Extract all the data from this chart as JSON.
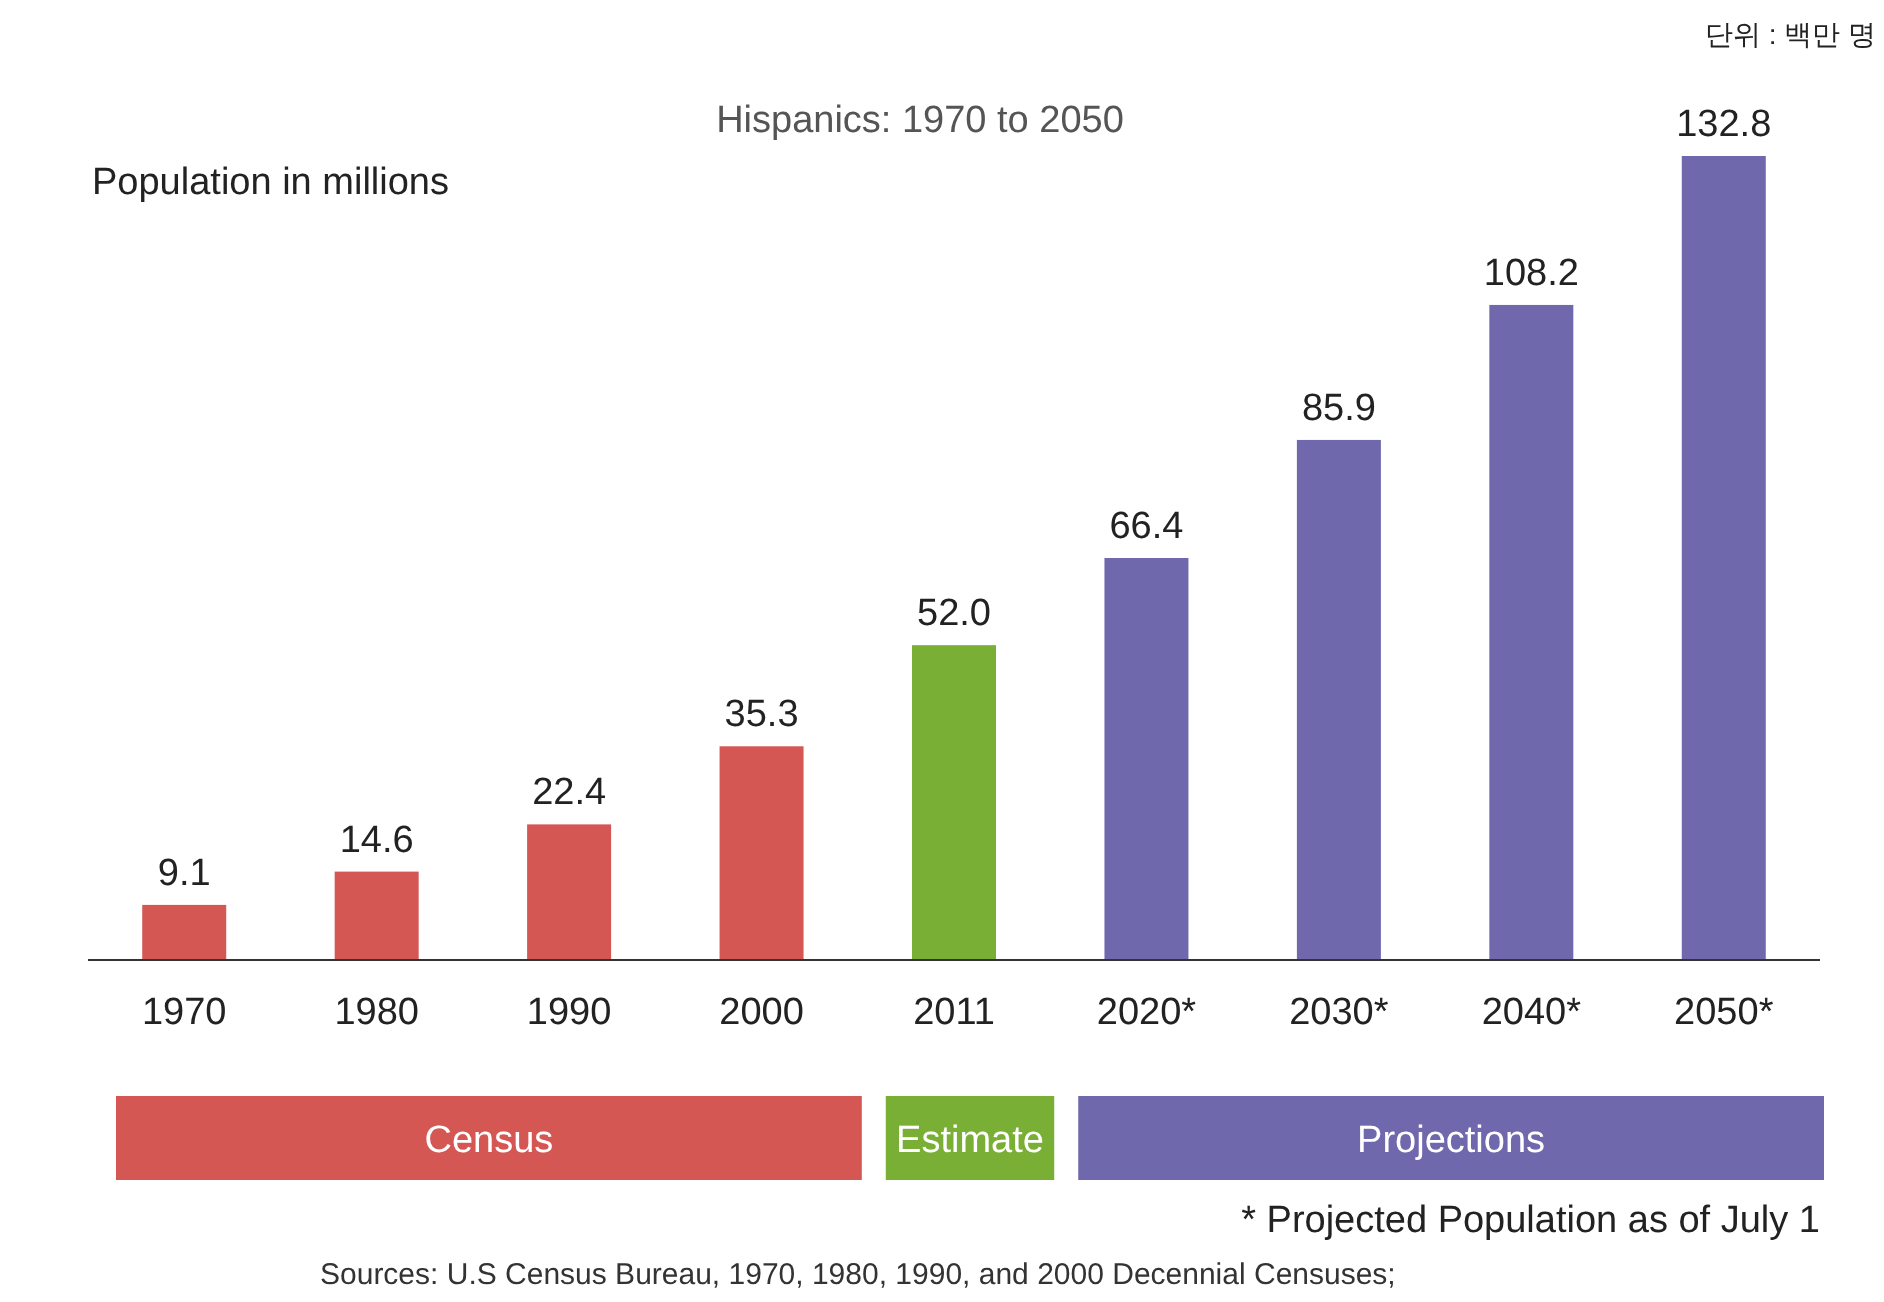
{
  "chart_data": {
    "type": "bar",
    "title": "Hispanics: 1970 to 2050",
    "ylabel": "Population in millions",
    "categories": [
      "1970",
      "1980",
      "1990",
      "2000",
      "2011",
      "2020*",
      "2030*",
      "2040*",
      "2050*"
    ],
    "series": [
      {
        "name": "Census",
        "color": "#d45754",
        "values": [
          9.1,
          14.6,
          22.4,
          35.3,
          null,
          null,
          null,
          null,
          null
        ],
        "value_labels": [
          "9.1",
          "14.6",
          "22.4",
          "35.3",
          null,
          null,
          null,
          null,
          null
        ]
      },
      {
        "name": "Estimate",
        "color": "#7aaf35",
        "values": [
          null,
          null,
          null,
          null,
          52.0,
          null,
          null,
          null,
          null
        ],
        "value_labels": [
          null,
          null,
          null,
          null,
          "52.0",
          null,
          null,
          null,
          null
        ]
      },
      {
        "name": "Projections",
        "color": "#6f68ad",
        "values": [
          null,
          null,
          null,
          null,
          null,
          66.4,
          85.9,
          108.2,
          132.8
        ],
        "value_labels": [
          null,
          null,
          null,
          null,
          null,
          "66.4",
          "85.9",
          "108.2",
          "132.8"
        ]
      }
    ],
    "legend": "bottom",
    "annotations": [
      "단위 : 백만 명",
      "* Projected Population as of July 1",
      "Sources: U.S Census Bureau, 1970, 1980, 1990, and 2000 Decennial Censuses;"
    ]
  }
}
